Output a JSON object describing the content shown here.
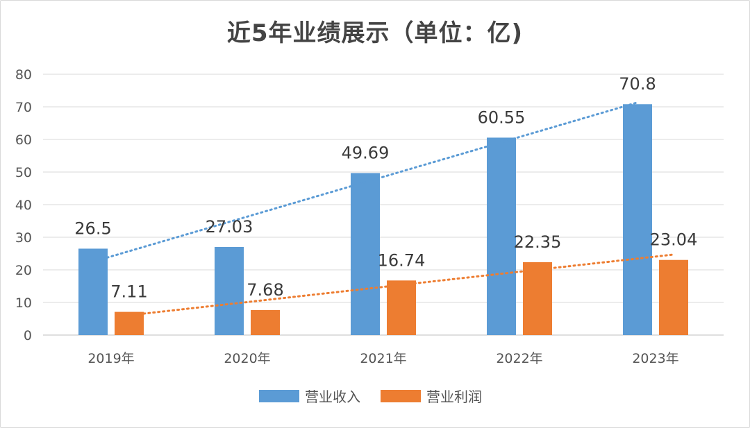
{
  "chart_data": {
    "type": "bar",
    "title": "近5年业绩展示（单位：亿)",
    "categories": [
      "2019年",
      "2020年",
      "2021年",
      "2022年",
      "2023年"
    ],
    "series": [
      {
        "name": "营业收入",
        "values": [
          26.5,
          27.03,
          49.69,
          60.55,
          70.8
        ],
        "color": "#5b9bd5"
      },
      {
        "name": "营业利润",
        "values": [
          7.11,
          7.68,
          16.74,
          22.35,
          23.04
        ],
        "color": "#ed7d31"
      }
    ],
    "ylim": [
      0,
      80
    ],
    "yticks": [
      "0",
      "10",
      "20",
      "30",
      "40",
      "50",
      "60",
      "70",
      "80"
    ],
    "grid": true,
    "trendlines": "dotted linear trendline per series",
    "legend_position": "bottom"
  }
}
